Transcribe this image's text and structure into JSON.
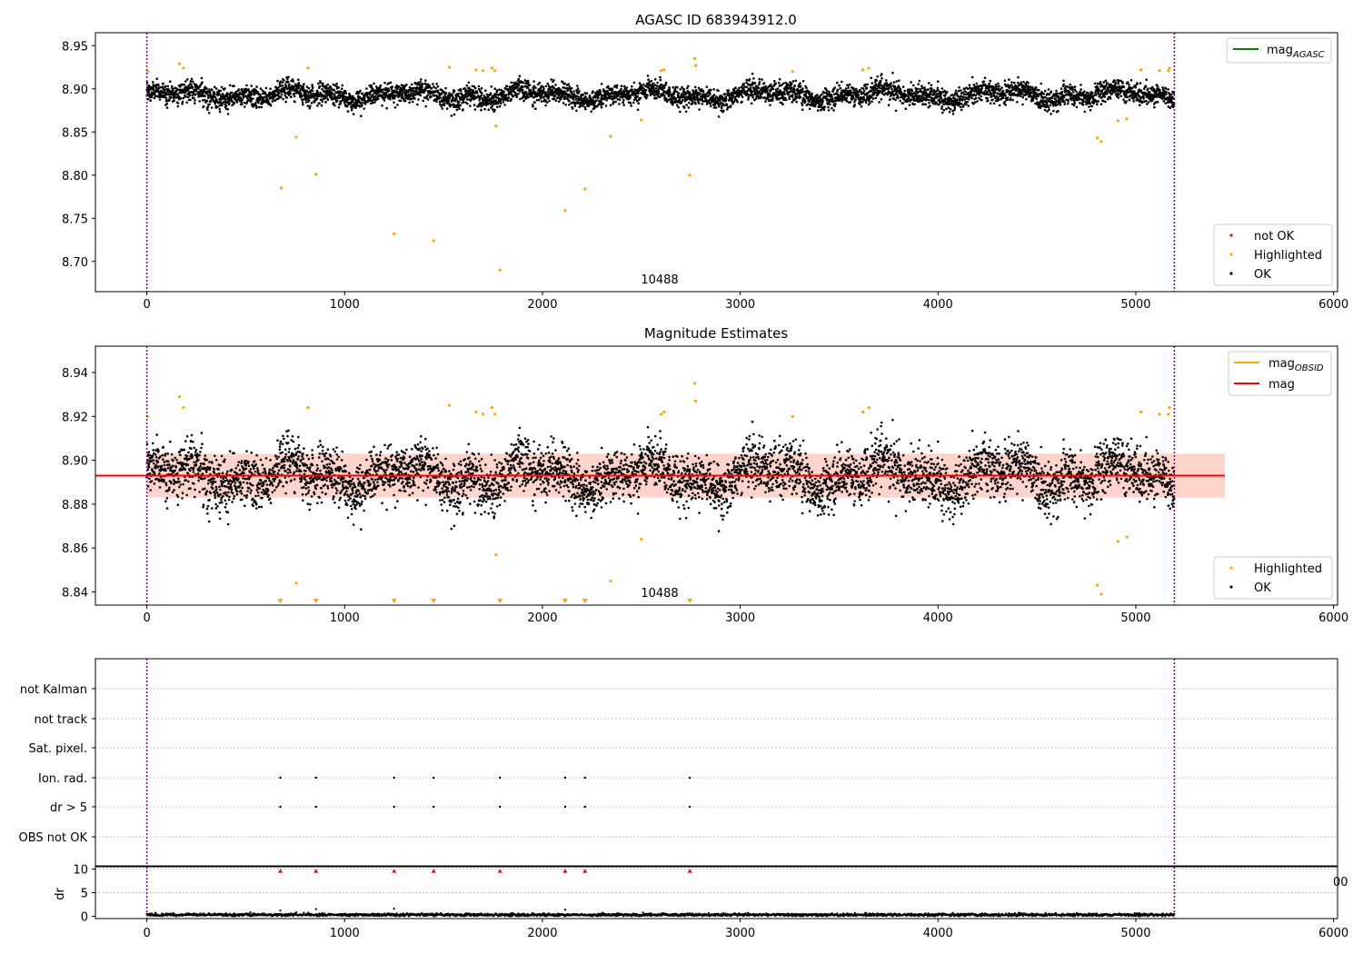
{
  "chart_data": [
    {
      "id": "panel1",
      "type": "scatter",
      "title": "AGASC ID 683943912.0",
      "xlim": [
        -260,
        6020
      ],
      "ylim": [
        8.665,
        8.965
      ],
      "xticks": [
        0,
        1000,
        2000,
        3000,
        4000,
        5000,
        6000
      ],
      "xtick_labels": [
        "0",
        "1000",
        "2000",
        "3000",
        "4000",
        "5000",
        "6000"
      ],
      "yticks": [
        8.7,
        8.75,
        8.8,
        8.85,
        8.9,
        8.95
      ],
      "ytick_labels": [
        "8.70",
        "8.75",
        "8.80",
        "8.85",
        "8.90",
        "8.95"
      ],
      "obsid_boundaries": [
        0,
        5195
      ],
      "obsid_label": "10488",
      "obsid_label_x": 2597,
      "ok_series": {
        "name": "OK",
        "n": 5195,
        "mean": 8.893,
        "wave_amp": 0.008,
        "noise": 0.006
      },
      "highlighted": {
        "name": "Highlighted",
        "points": [
          [
            5,
            8.92
          ],
          [
            165,
            8.929
          ],
          [
            185,
            8.924
          ],
          [
            680,
            8.785
          ],
          [
            755,
            8.844
          ],
          [
            815,
            8.924
          ],
          [
            855,
            8.801
          ],
          [
            1250,
            8.732
          ],
          [
            1450,
            8.724
          ],
          [
            1530,
            8.925
          ],
          [
            1665,
            8.922
          ],
          [
            1700,
            8.921
          ],
          [
            1745,
            8.924
          ],
          [
            1760,
            8.921
          ],
          [
            1765,
            8.857
          ],
          [
            1785,
            8.69
          ],
          [
            2115,
            8.759
          ],
          [
            2215,
            8.784
          ],
          [
            2345,
            8.845
          ],
          [
            2500,
            8.864
          ],
          [
            2600,
            8.921
          ],
          [
            2615,
            8.922
          ],
          [
            2745,
            8.8
          ],
          [
            2770,
            8.935
          ],
          [
            2775,
            8.927
          ],
          [
            3265,
            8.92
          ],
          [
            3620,
            8.922
          ],
          [
            3650,
            8.924
          ],
          [
            4805,
            8.843
          ],
          [
            4825,
            8.839
          ],
          [
            4910,
            8.863
          ],
          [
            4955,
            8.865
          ],
          [
            5025,
            8.922
          ],
          [
            5120,
            8.921
          ],
          [
            5165,
            8.921
          ],
          [
            5170,
            8.924
          ]
        ]
      },
      "legends": [
        {
          "position": "upper right",
          "entries": [
            {
              "label": "mag",
              "sub": "AGASC",
              "type": "line",
              "color": "#008000"
            }
          ]
        },
        {
          "position": "lower right",
          "entries": [
            {
              "label": "not OK",
              "type": "marker",
              "color": "#ff0000"
            },
            {
              "label": "Highlighted",
              "type": "marker",
              "color": "#ffa500"
            },
            {
              "label": "OK",
              "type": "marker",
              "color": "#000000"
            }
          ]
        }
      ]
    },
    {
      "id": "panel2",
      "type": "scatter",
      "title": "Magnitude Estimates",
      "xlim": [
        -260,
        6020
      ],
      "ylim": [
        8.834,
        8.952
      ],
      "xticks": [
        0,
        1000,
        2000,
        3000,
        4000,
        5000,
        6000
      ],
      "xtick_labels": [
        "0",
        "1000",
        "2000",
        "3000",
        "4000",
        "5000",
        "6000"
      ],
      "yticks": [
        8.84,
        8.86,
        8.88,
        8.9,
        8.92,
        8.94
      ],
      "ytick_labels": [
        "8.84",
        "8.86",
        "8.88",
        "8.90",
        "8.92",
        "8.94"
      ],
      "obsid_boundaries": [
        0,
        5195
      ],
      "obsid_label": "10488",
      "obsid_label_x": 2597,
      "mag_line": {
        "value": 8.893,
        "color": "#ff0000",
        "x_range": [
          -260,
          5450
        ]
      },
      "mag_band": {
        "lower": 8.883,
        "upper": 8.903,
        "x_range": [
          0,
          5450
        ]
      },
      "ok_series": {
        "name": "OK",
        "n": 5195,
        "mean": 8.893,
        "wave_amp": 0.008,
        "noise": 0.006
      },
      "highlighted": {
        "name": "Highlighted",
        "points": [
          [
            5,
            8.92
          ],
          [
            165,
            8.929
          ],
          [
            185,
            8.924
          ],
          [
            755,
            8.844
          ],
          [
            815,
            8.924
          ],
          [
            1530,
            8.925
          ],
          [
            1665,
            8.922
          ],
          [
            1700,
            8.921
          ],
          [
            1745,
            8.924
          ],
          [
            1760,
            8.921
          ],
          [
            1765,
            8.857
          ],
          [
            2345,
            8.845
          ],
          [
            2500,
            8.864
          ],
          [
            2600,
            8.921
          ],
          [
            2615,
            8.922
          ],
          [
            2770,
            8.935
          ],
          [
            2775,
            8.927
          ],
          [
            3265,
            8.92
          ],
          [
            3620,
            8.922
          ],
          [
            3650,
            8.924
          ],
          [
            4805,
            8.843
          ],
          [
            4825,
            8.839
          ],
          [
            4910,
            8.863
          ],
          [
            4955,
            8.865
          ],
          [
            5025,
            8.922
          ],
          [
            5120,
            8.921
          ],
          [
            5165,
            8.921
          ],
          [
            5170,
            8.924
          ]
        ]
      },
      "below_range_markers": [
        675,
        855,
        1250,
        1450,
        1785,
        2115,
        2215,
        2745
      ],
      "legends": [
        {
          "position": "upper right",
          "entries": [
            {
              "label": "mag",
              "sub": "OBSID",
              "type": "line",
              "color": "#ffa500"
            },
            {
              "label": "mag",
              "type": "line",
              "color": "#ff0000"
            }
          ]
        },
        {
          "position": "lower right",
          "entries": [
            {
              "label": "Highlighted",
              "type": "marker",
              "color": "#ffa500"
            },
            {
              "label": "OK",
              "type": "marker",
              "color": "#000000"
            }
          ]
        }
      ]
    },
    {
      "id": "panel3",
      "type": "scatter",
      "xlim": [
        -260,
        6020
      ],
      "ylabels": [
        "not Kalman",
        "not track",
        "Sat. pixel.",
        "Ion. rad.",
        "dr > 5",
        "OBS not OK"
      ],
      "flag_times": [
        675,
        855,
        1250,
        1450,
        1785,
        2115,
        2215,
        2745
      ],
      "flagged_rows": [
        "Ion. rad.",
        "dr > 5"
      ],
      "obsid_boundaries": [
        0,
        5195
      ]
    },
    {
      "id": "panel4",
      "type": "scatter",
      "ylabel": "dr",
      "xlim": [
        -260,
        6020
      ],
      "ylim": [
        -0.5,
        10.5
      ],
      "yticks": [
        0,
        5,
        10
      ],
      "ytick_labels": [
        "0",
        "5",
        "10"
      ],
      "xticks": [
        0,
        1000,
        2000,
        3000,
        4000,
        5000,
        6000
      ],
      "xtick_labels": [
        "0",
        "1000",
        "2000",
        "3000",
        "4000",
        "5000",
        "6000"
      ],
      "dr_series": {
        "n": 5195,
        "mean": 0.3,
        "spread": 0.3
      },
      "outlier_markers": [
        675,
        855,
        1250,
        1450,
        1785,
        2115,
        2215,
        2745
      ],
      "spikes": [
        [
          675,
          1.2
        ],
        [
          855,
          1.5
        ],
        [
          1250,
          1.6
        ],
        [
          2115,
          1.4
        ]
      ],
      "obsid_boundaries": [
        0,
        5195
      ],
      "clipped_tick_text": "00"
    }
  ]
}
